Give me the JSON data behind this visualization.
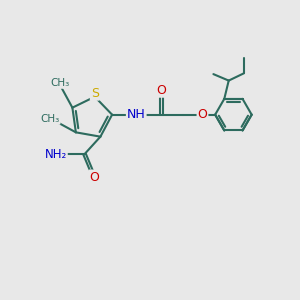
{
  "bg_color": "#e8e8e8",
  "bond_color": "#2d6b5e",
  "bond_width": 1.5,
  "S_color": "#ccaa00",
  "O_color": "#cc0000",
  "N_color": "#0000cc",
  "text_color": "#2d6b5e",
  "figsize": [
    3.0,
    3.0
  ],
  "dpi": 100,
  "xlim": [
    0,
    10
  ],
  "ylim": [
    0,
    10
  ]
}
